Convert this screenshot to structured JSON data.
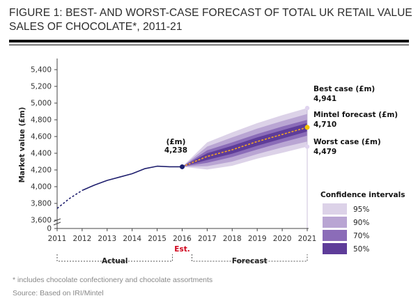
{
  "header": {
    "title_line1": "FIGURE 1: BEST- AND WORST-CASE FORECAST OF TOTAL UK RETAIL VALUE",
    "title_line2": "SALES OF CHOCOLATE*, 2011-21"
  },
  "chart_data": {
    "type": "line",
    "title": "FIGURE 1: BEST- AND WORST-CASE FORECAST OF TOTAL UK RETAIL VALUE SALES OF CHOCOLATE*, 2011-21",
    "ylabel": "Market value (£m)",
    "xlabel": "",
    "ylim": [
      3500,
      5400
    ],
    "y_axis_break": true,
    "y_ticks": [
      "0",
      "3,600",
      "3,800",
      "4,000",
      "4,200",
      "4,400",
      "4,600",
      "4,800",
      "5,000",
      "5,200",
      "5,400"
    ],
    "x_ticks": [
      "2011",
      "2012",
      "2013",
      "2014",
      "2015",
      "2016",
      "2017",
      "2018",
      "2019",
      "2020",
      "2021"
    ],
    "est_label": "Est.",
    "period_labels": {
      "actual": "Actual",
      "forecast": "Forecast"
    },
    "actual": {
      "x": [
        2011,
        2011.5,
        2012,
        2012.5,
        2013,
        2013.5,
        2014,
        2014.5,
        2015,
        2015.5,
        2016
      ],
      "y": [
        3740,
        3860,
        3955,
        4020,
        4075,
        4115,
        4155,
        4215,
        4245,
        4238,
        4238
      ],
      "dashed_until": 2012
    },
    "forecast": {
      "x": [
        2016,
        2017,
        2018,
        2019,
        2020,
        2021
      ],
      "mintel": [
        4238,
        4362,
        4442,
        4540,
        4625,
        4710
      ],
      "bands": [
        {
          "label": "95%",
          "lower": [
            4238,
            4205,
            4250,
            4335,
            4405,
            4479
          ],
          "upper": [
            4238,
            4530,
            4650,
            4760,
            4855,
            4941
          ],
          "color": "#dcd2e8"
        },
        {
          "label": "90%",
          "lower": [
            4238,
            4245,
            4300,
            4390,
            4470,
            4540
          ],
          "upper": [
            4238,
            4480,
            4590,
            4695,
            4785,
            4870
          ],
          "color": "#b9a5d3"
        },
        {
          "label": "70%",
          "lower": [
            4238,
            4285,
            4355,
            4445,
            4530,
            4610
          ],
          "upper": [
            4238,
            4435,
            4530,
            4630,
            4720,
            4800
          ],
          "color": "#8b6cb8"
        },
        {
          "label": "50%",
          "lower": [
            4238,
            4320,
            4395,
            4490,
            4575,
            4660
          ],
          "upper": [
            4238,
            4400,
            4490,
            4590,
            4675,
            4760
          ],
          "color": "#5e3c99"
        }
      ]
    },
    "annotations": {
      "est_point": {
        "label": "(£m)",
        "value": "4,238",
        "x": 2016,
        "y": 4238
      },
      "best": {
        "label": "Best case (£m)",
        "value": "4,941",
        "x": 2021,
        "y": 4941
      },
      "mintel": {
        "label": "Mintel forecast (£m)",
        "value": "4,710",
        "x": 2021,
        "y": 4710
      },
      "worst": {
        "label": "Worst case (£m)",
        "value": "4,479",
        "x": 2021,
        "y": 4479
      }
    },
    "legend": {
      "title": "Confidence intervals",
      "position": "right",
      "entries": [
        "95%",
        "90%",
        "70%",
        "50%"
      ]
    },
    "colors": {
      "actual_line": "#1f1f6e",
      "mintel_line": "#f5a623",
      "mintel_point": "#f5c400",
      "best_point": "#e0d4ef",
      "worst_point": "#e0d4ef",
      "est_point": "#1a1f6e",
      "axis": "#444444",
      "est_text": "#d0021b"
    }
  },
  "footer": {
    "note": "* includes chocolate confectionery and chocolate assortments",
    "source": "Source: Based on IRI/Mintel"
  }
}
